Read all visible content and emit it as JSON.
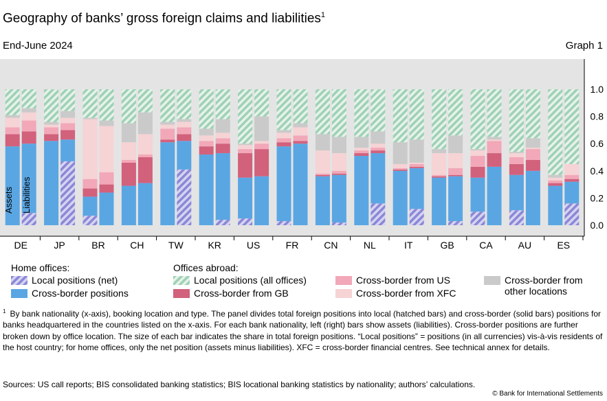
{
  "header": {
    "title": "Geography of banks’ gross foreign claims and liabilities",
    "title_sup": "1",
    "subtitle": "End-June 2024",
    "graph_number": "Graph 1"
  },
  "chart_data": {
    "type": "bar",
    "stacked": true,
    "categories": [
      "DE",
      "JP",
      "BR",
      "CH",
      "TW",
      "KR",
      "US",
      "FR",
      "CN",
      "NL",
      "IT",
      "GB",
      "CA",
      "AU",
      "ES"
    ],
    "bar_labels": {
      "assets": "Assets",
      "liabilities": "Liabilities"
    },
    "ylim": [
      0,
      1
    ],
    "yticks": [
      "0.0",
      "0.2",
      "0.4",
      "0.6",
      "0.8",
      "1.0"
    ],
    "grid": false,
    "legend_placement": "bottom",
    "series": [
      {
        "name": "Local positions (net)",
        "group": "Home offices",
        "color": "#8a88d6",
        "pattern": "hatch"
      },
      {
        "name": "Cross-border positions",
        "group": "Home offices",
        "color": "#5aa6e3",
        "pattern": "solid"
      },
      {
        "name": "Local positions (all offices)",
        "group": "Offices abroad",
        "color": "#9fd1b5",
        "pattern": "hatch"
      },
      {
        "name": "Cross-border from GB",
        "group": "Offices abroad",
        "color": "#d2617c",
        "pattern": "solid"
      },
      {
        "name": "Cross-border from US",
        "group": "Offices abroad",
        "color": "#f2a8b8",
        "pattern": "solid"
      },
      {
        "name": "Cross-border from XFC",
        "group": "Offices abroad",
        "color": "#f6d3d5",
        "pattern": "solid"
      },
      {
        "name": "Cross-border from other locations",
        "group": "Offices abroad",
        "color": "#cacaca",
        "pattern": "solid"
      }
    ],
    "assets": [
      [
        0.0,
        0.58,
        0.58,
        0.67,
        0.72,
        0.79,
        0.81,
        1.0
      ],
      [
        0.0,
        0.62,
        0.62,
        0.67,
        0.72,
        0.74,
        0.76,
        1.0
      ],
      [
        0.07,
        0.21,
        0.21,
        0.27,
        0.34,
        0.78,
        0.79,
        1.0
      ],
      [
        0.0,
        0.29,
        0.29,
        0.46,
        0.48,
        0.61,
        0.75,
        1.0
      ],
      [
        0.0,
        0.61,
        0.61,
        0.63,
        0.71,
        0.74,
        0.76,
        1.0
      ],
      [
        0.0,
        0.52,
        0.52,
        0.58,
        0.62,
        0.66,
        0.71,
        1.0
      ],
      [
        0.05,
        0.35,
        0.35,
        0.53,
        0.56,
        0.59,
        0.6,
        1.0
      ],
      [
        0.03,
        0.58,
        0.58,
        0.61,
        0.64,
        0.68,
        0.7,
        1.0
      ],
      [
        0.0,
        0.36,
        0.36,
        0.37,
        0.38,
        0.55,
        0.67,
        1.0
      ],
      [
        0.0,
        0.51,
        0.51,
        0.53,
        0.55,
        0.57,
        0.65,
        1.0
      ],
      [
        0.0,
        0.4,
        0.4,
        0.41,
        0.42,
        0.45,
        0.61,
        1.0
      ],
      [
        0.0,
        0.35,
        0.35,
        0.36,
        0.37,
        0.53,
        0.56,
        1.0
      ],
      [
        0.1,
        0.35,
        0.35,
        0.43,
        0.51,
        0.55,
        0.56,
        1.0
      ],
      [
        0.11,
        0.37,
        0.37,
        0.45,
        0.5,
        0.53,
        0.54,
        1.0
      ],
      [
        0.0,
        0.29,
        0.29,
        0.31,
        0.33,
        0.35,
        0.37,
        1.0
      ]
    ],
    "liabilities": [
      [
        0.09,
        0.6,
        0.6,
        0.69,
        0.77,
        0.83,
        0.86,
        1.0
      ],
      [
        0.47,
        0.63,
        0.63,
        0.7,
        0.75,
        0.79,
        0.84,
        1.0
      ],
      [
        0.0,
        0.24,
        0.24,
        0.3,
        0.39,
        0.73,
        0.77,
        1.0
      ],
      [
        0.0,
        0.31,
        0.31,
        0.5,
        0.52,
        0.67,
        0.83,
        1.0
      ],
      [
        0.41,
        0.62,
        0.62,
        0.67,
        0.72,
        0.76,
        0.78,
        1.0
      ],
      [
        0.04,
        0.53,
        0.53,
        0.6,
        0.64,
        0.68,
        0.78,
        1.0
      ],
      [
        0.0,
        0.36,
        0.36,
        0.56,
        0.6,
        0.62,
        0.8,
        1.0
      ],
      [
        0.0,
        0.6,
        0.6,
        0.62,
        0.66,
        0.72,
        0.75,
        1.0
      ],
      [
        0.02,
        0.37,
        0.37,
        0.38,
        0.4,
        0.53,
        0.65,
        1.0
      ],
      [
        0.16,
        0.53,
        0.53,
        0.55,
        0.57,
        0.6,
        0.69,
        1.0
      ],
      [
        0.12,
        0.42,
        0.42,
        0.43,
        0.45,
        0.46,
        0.63,
        1.0
      ],
      [
        0.03,
        0.36,
        0.36,
        0.37,
        0.42,
        0.53,
        0.66,
        1.0
      ],
      [
        0.0,
        0.43,
        0.43,
        0.53,
        0.62,
        0.63,
        0.65,
        1.0
      ],
      [
        0.0,
        0.4,
        0.4,
        0.48,
        0.56,
        0.57,
        0.64,
        1.0
      ],
      [
        0.16,
        0.32,
        0.32,
        0.34,
        0.37,
        0.45,
        0.45,
        1.0
      ]
    ]
  },
  "legend": {
    "home_heading": "Home offices:",
    "abroad_heading": "Offices abroad:",
    "items": [
      "Local positions (net)",
      "Cross-border positions",
      "Local positions (all offices)",
      "Cross-border from GB",
      "Cross-border from US",
      "Cross-border from XFC",
      "Cross-border from other locations"
    ]
  },
  "footnote": {
    "mark": "1",
    "text": "By bank nationality (x-axis), booking location and type. The panel divides total foreign positions into local (hatched bars) and cross-border (solid bars) positions for banks headquartered in the countries listed on the x-axis. For each bank nationality, left (right) bars show assets (liabilities). Cross-border positions are further broken down by office location. The size of each bar indicates the share in total foreign positions. “Local positions” = positions (in all currencies) vis-à-vis residents of the host country; for home offices, only the net position (assets minus liabilities). XFC = cross-border financial centres. See technical annex for details."
  },
  "sources": "Sources: US call reports; BIS consolidated banking statistics; BIS locational banking statistics by nationality; authors’ calculations.",
  "copyright": "© Bank for International Settlements"
}
